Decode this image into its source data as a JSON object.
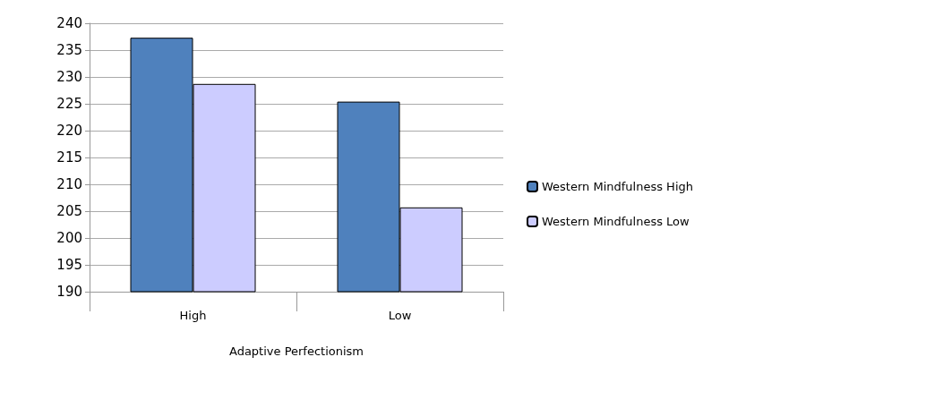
{
  "chart_data": {
    "type": "bar",
    "xlabel": "Adaptive Perfectionism",
    "categories": [
      "High",
      "Low"
    ],
    "series": [
      {
        "name": "Western Mindfulness High",
        "color": "#4f81bd",
        "values": [
          237.3,
          225.4
        ]
      },
      {
        "name": "Western Mindfulness Low",
        "color": "#ccccff",
        "values": [
          228.7,
          205.7
        ]
      }
    ],
    "ylim": [
      190,
      240
    ],
    "yticks": [
      190,
      195,
      200,
      205,
      210,
      215,
      220,
      225,
      230,
      235,
      240
    ],
    "grid": "y",
    "legend": "right"
  }
}
